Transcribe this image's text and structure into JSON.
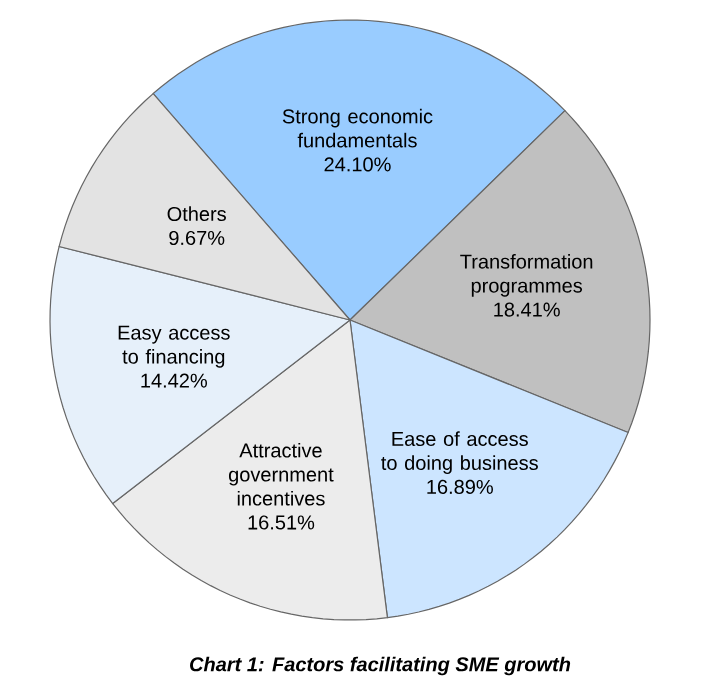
{
  "chart_data": {
    "type": "pie",
    "title": "Chart 1: Factors facilitating SME growth",
    "categories": [
      "Strong economic fundamentals",
      "Transformation programmes",
      "Ease of access to doing business",
      "Attractive government incentives",
      "Easy access to financing",
      "Others"
    ],
    "values": [
      24.1,
      18.41,
      16.89,
      16.51,
      14.42,
      9.67
    ],
    "value_labels": [
      "24.10%",
      "18.41%",
      "16.89%",
      "16.51%",
      "14.42%",
      "9.67%"
    ],
    "colors": [
      "#99ccff",
      "#c0c0c0",
      "#cce5ff",
      "#ececec",
      "#e6f0fa",
      "#e3e3e3"
    ]
  }
}
